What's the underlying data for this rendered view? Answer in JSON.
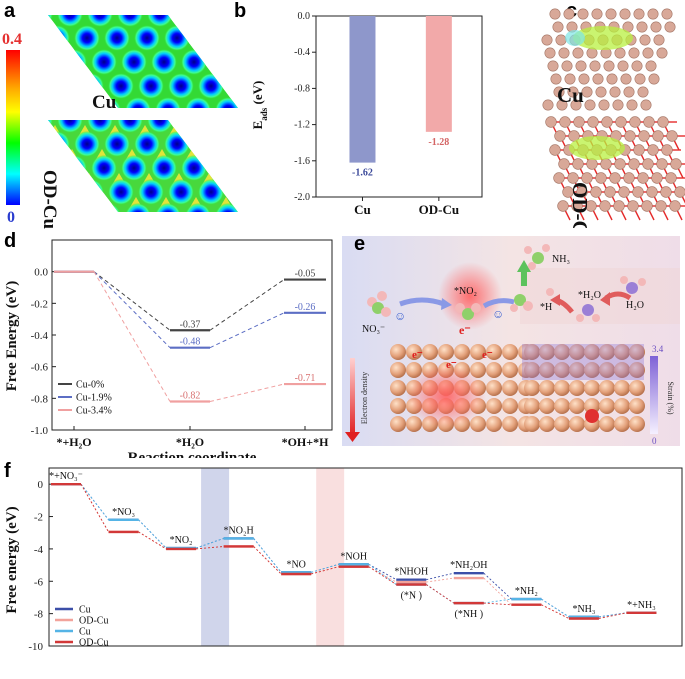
{
  "panel_labels": {
    "a": "a",
    "b": "b",
    "c": "c",
    "d": "d",
    "e": "e",
    "f": "f"
  },
  "panel_a": {
    "colorbar_max": "0.4",
    "colorbar_min": "0",
    "labels": [
      "Cu",
      "OD-Cu"
    ],
    "colorbar_colors": [
      "#ff0000",
      "#ffaa00",
      "#ffff00",
      "#00ff00",
      "#00ffff",
      "#0000ff"
    ]
  },
  "panel_c": {
    "labels": [
      "Cu",
      "OD-Cu"
    ],
    "atom_color": "#d8a898",
    "oxygen_color": "#e52b2b",
    "density_color": "#b8f040"
  },
  "panel_e": {
    "species": {
      "nh3": "NH₃",
      "no2": "*NO₂",
      "h": "*H",
      "h2o_ads": "*H₂O",
      "h2o": "H₂O",
      "no3": "NO₃⁻",
      "electron": "e⁻"
    },
    "electron_density_label": "Electron density",
    "strain_label": "Strain (%)",
    "strain_max": "3.4",
    "strain_min": "0"
  },
  "chart_data": [
    {
      "id": "b",
      "type": "bar",
      "categories": [
        "Cu",
        "OD-Cu"
      ],
      "values": [
        -1.62,
        -1.28
      ],
      "data_labels": [
        "-1.62",
        "-1.28"
      ],
      "colors": [
        "#8e97cb",
        "#f2a9a9"
      ],
      "label_colors": [
        "#3c4a9a",
        "#d46565"
      ],
      "ylabel": "Eads (eV)",
      "ylim": [
        -2.0,
        0.0
      ],
      "yticks": [
        "0.0",
        "-0.4",
        "-0.8",
        "-1.2",
        "-1.6",
        "-2.0"
      ]
    },
    {
      "id": "d",
      "type": "line",
      "categories": [
        "*+H₂O",
        "*H₂O",
        "*OH+*H"
      ],
      "xlabel": "Reaction coordinate",
      "ylabel": "Free Energy (eV)",
      "ylim": [
        -1.0,
        0.2
      ],
      "yticks": [
        "0.0",
        "-0.2",
        "-0.4",
        "-0.6",
        "-0.8",
        "-1.0"
      ],
      "legend_position": "bottom-left",
      "series": [
        {
          "name": "Cu-0%",
          "color": "#444444",
          "values": [
            0,
            -0.37,
            -0.05
          ],
          "labels": [
            "",
            "-0.37",
            "-0.05"
          ]
        },
        {
          "name": "Cu-1.9%",
          "color": "#5c6ec4",
          "values": [
            0,
            -0.48,
            -0.26
          ],
          "labels": [
            "",
            "-0.48",
            "-0.26"
          ]
        },
        {
          "name": "Cu-3.4%",
          "color": "#f0a0a0",
          "values": [
            0,
            -0.82,
            -0.71
          ],
          "labels": [
            "",
            "-0.82",
            "-0.71"
          ]
        }
      ]
    },
    {
      "id": "f",
      "type": "line",
      "ylabel": "Free energy (eV)",
      "ylim": [
        -10,
        1
      ],
      "yticks": [
        "0",
        "-2",
        "-4",
        "-6",
        "-8",
        "-10"
      ],
      "legend_position": "bottom-left",
      "steps": [
        "*+NO₃⁻",
        "*NO₃",
        "*NO₂",
        "*NO₂H",
        "*NO",
        "*NOH",
        "*NHOH",
        "*NH₂OH",
        "*NH₂",
        "*NH₃",
        "*+NH₃"
      ],
      "alt_steps": {
        "6": "(*N )",
        "7": "(*NH )"
      },
      "highlight_steps": [
        2,
        4
      ],
      "highlight_colors": [
        "#c4cae6",
        "#f7d7d7"
      ],
      "series": [
        {
          "name": "Cu",
          "color": "#3c4fa8",
          "values": [
            0,
            -2.2,
            -3.95,
            -3.35,
            -5.45,
            -4.95,
            -5.9,
            -5.5,
            -7.1,
            -8.2,
            -7.95
          ]
        },
        {
          "name": "OD-Cu",
          "color": "#f2a39b",
          "values": [
            0,
            -2.95,
            -4.0,
            -3.85,
            -5.55,
            -5.1,
            -6.05,
            -5.8,
            -7.45,
            -8.3,
            -7.95
          ]
        },
        {
          "name": "Cu",
          "color": "#55b4e6",
          "values": [
            0,
            -2.2,
            -3.95,
            -3.35,
            -5.45,
            -4.95,
            -6.2,
            -7.35,
            -7.1,
            -8.2,
            -7.95
          ]
        },
        {
          "name": "OD-Cu",
          "color": "#d23838",
          "values": [
            0,
            -2.95,
            -4.0,
            -3.85,
            -5.55,
            -5.1,
            -6.2,
            -7.35,
            -7.45,
            -8.3,
            -7.95
          ]
        }
      ]
    }
  ]
}
